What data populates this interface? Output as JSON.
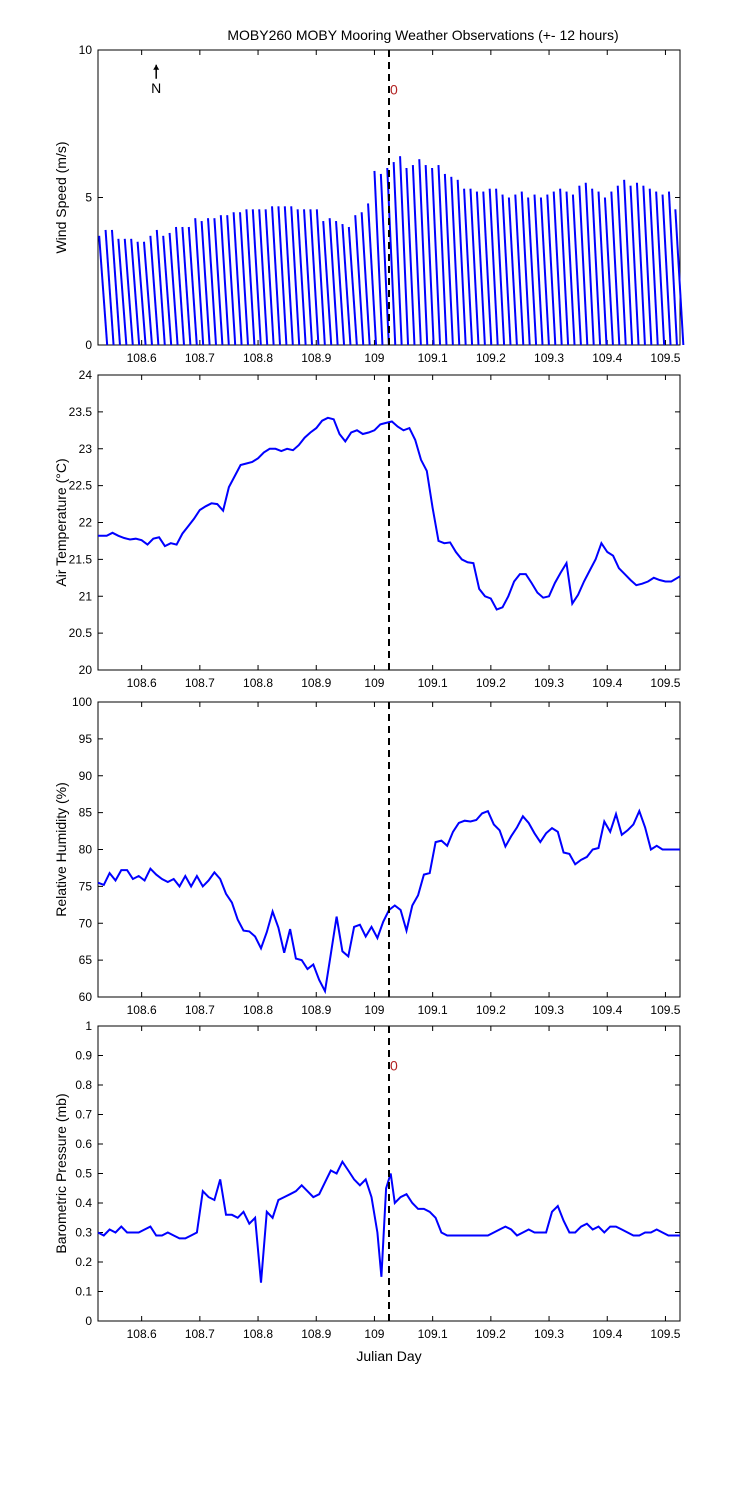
{
  "title": "MOBY260 MOBY Mooring Weather Observations (+- 12 hours)",
  "colors": {
    "series": "#0000ff",
    "axis": "#000000",
    "marker": "#b22222"
  },
  "chart_data": [
    {
      "type": "line",
      "id": "wind",
      "ylabel": "Wind Speed (m/s)",
      "xlabel": "",
      "xlim": [
        108.525,
        109.525
      ],
      "ylim": [
        0,
        10
      ],
      "yticks": [
        0,
        5,
        10
      ],
      "xticks": [
        108.6,
        108.7,
        108.8,
        108.9,
        109,
        109.1,
        109.2,
        109.3,
        109.4,
        109.5
      ],
      "xtick_labels": [
        "108.6",
        "108.7",
        "108.8",
        "108.9",
        "109",
        "109.1",
        "109.2",
        "109.3",
        "109.4",
        "109.5"
      ],
      "vline_x": 109.025,
      "vline_label": "0",
      "compass_label": "N",
      "style": "wind-vectors",
      "x": [
        108.527,
        108.538,
        108.549,
        108.56,
        108.571,
        108.582,
        108.593,
        108.604,
        108.615,
        108.626,
        108.637,
        108.648,
        108.659,
        108.67,
        108.681,
        108.692,
        108.703,
        108.714,
        108.725,
        108.736,
        108.747,
        108.758,
        108.769,
        108.78,
        108.791,
        108.802,
        108.813,
        108.824,
        108.835,
        108.846,
        108.857,
        108.868,
        108.879,
        108.89,
        108.901,
        108.912,
        108.923,
        108.934,
        108.945,
        108.956,
        108.967,
        108.978,
        108.989,
        109.0,
        109.011,
        109.022,
        109.033,
        109.044,
        109.055,
        109.066,
        109.077,
        109.088,
        109.099,
        109.11,
        109.121,
        109.132,
        109.143,
        109.154,
        109.165,
        109.176,
        109.187,
        109.198,
        109.209,
        109.22,
        109.231,
        109.242,
        109.253,
        109.264,
        109.275,
        109.286,
        109.297,
        109.308,
        109.319,
        109.33,
        109.341,
        109.352,
        109.363,
        109.374,
        109.385,
        109.396,
        109.407,
        109.418,
        109.429,
        109.44,
        109.451,
        109.462,
        109.473,
        109.484,
        109.495,
        109.506,
        109.517
      ],
      "values": [
        3.7,
        3.9,
        3.9,
        3.6,
        3.6,
        3.6,
        3.5,
        3.5,
        3.7,
        3.9,
        3.7,
        3.8,
        4.0,
        4.0,
        4.0,
        4.3,
        4.2,
        4.3,
        4.3,
        4.4,
        4.4,
        4.5,
        4.5,
        4.6,
        4.6,
        4.6,
        4.6,
        4.7,
        4.7,
        4.7,
        4.7,
        4.6,
        4.6,
        4.6,
        4.6,
        4.2,
        4.3,
        4.2,
        4.1,
        4.0,
        4.4,
        4.5,
        4.8,
        5.9,
        5.8,
        6.0,
        6.2,
        6.4,
        6.0,
        6.1,
        6.3,
        6.1,
        6.0,
        6.1,
        5.8,
        5.7,
        5.6,
        5.3,
        5.3,
        5.2,
        5.2,
        5.3,
        5.3,
        5.1,
        5.0,
        5.1,
        5.2,
        5.0,
        5.1,
        5.0,
        5.1,
        5.2,
        5.3,
        5.2,
        5.1,
        5.4,
        5.5,
        5.3,
        5.2,
        5.0,
        5.2,
        5.4,
        5.6,
        5.4,
        5.5,
        5.4,
        5.3,
        5.2,
        5.1,
        5.2,
        4.6
      ],
      "values_note_free": true
    },
    {
      "type": "line",
      "id": "airtemp",
      "ylabel": "Air Temperature (°C)",
      "xlabel": "",
      "xlim": [
        108.525,
        109.525
      ],
      "ylim": [
        20,
        24
      ],
      "yticks": [
        20,
        20.5,
        21,
        21.5,
        22,
        22.5,
        23,
        23.5,
        24
      ],
      "ytick_labels": [
        "20",
        "20.5",
        "21",
        "21.5",
        "22",
        "22.5",
        "23",
        "23.5",
        "24"
      ],
      "xticks": [
        108.6,
        108.7,
        108.8,
        108.9,
        109,
        109.1,
        109.2,
        109.3,
        109.4,
        109.5
      ],
      "xtick_labels": [
        "108.6",
        "108.7",
        "108.8",
        "108.9",
        "109",
        "109.1",
        "109.2",
        "109.3",
        "109.4",
        "109.5"
      ],
      "vline_x": 109.025,
      "x": [
        108.525,
        108.54,
        108.55,
        108.56,
        108.57,
        108.58,
        108.59,
        108.6,
        108.61,
        108.62,
        108.63,
        108.64,
        108.65,
        108.66,
        108.67,
        108.68,
        108.69,
        108.7,
        108.71,
        108.72,
        108.73,
        108.74,
        108.75,
        108.76,
        108.77,
        108.78,
        108.79,
        108.8,
        108.81,
        108.82,
        108.83,
        108.84,
        108.85,
        108.86,
        108.87,
        108.88,
        108.89,
        108.9,
        108.91,
        108.92,
        108.93,
        108.94,
        108.95,
        108.96,
        108.97,
        108.98,
        108.99,
        109.0,
        109.01,
        109.02,
        109.03,
        109.04,
        109.05,
        109.06,
        109.07,
        109.08,
        109.09,
        109.1,
        109.11,
        109.12,
        109.13,
        109.14,
        109.15,
        109.16,
        109.17,
        109.18,
        109.19,
        109.2,
        109.21,
        109.22,
        109.23,
        109.24,
        109.25,
        109.26,
        109.27,
        109.28,
        109.29,
        109.3,
        109.31,
        109.32,
        109.33,
        109.34,
        109.35,
        109.36,
        109.37,
        109.38,
        109.39,
        109.4,
        109.41,
        109.42,
        109.43,
        109.44,
        109.45,
        109.46,
        109.47,
        109.48,
        109.49,
        109.5,
        109.51,
        109.525
      ],
      "values": [
        21.82,
        21.82,
        21.86,
        21.82,
        21.79,
        21.77,
        21.78,
        21.76,
        21.7,
        21.78,
        21.8,
        21.68,
        21.72,
        21.7,
        21.85,
        21.95,
        22.05,
        22.17,
        22.22,
        22.26,
        22.25,
        22.16,
        22.48,
        22.63,
        22.78,
        22.8,
        22.82,
        22.87,
        22.95,
        23.0,
        23.0,
        22.97,
        23.0,
        22.98,
        23.05,
        23.15,
        23.22,
        23.28,
        23.38,
        23.42,
        23.4,
        23.2,
        23.1,
        23.22,
        23.25,
        23.2,
        23.22,
        23.25,
        23.33,
        23.35,
        23.37,
        23.3,
        23.25,
        23.28,
        23.12,
        22.85,
        22.7,
        22.2,
        21.75,
        21.72,
        21.73,
        21.6,
        21.5,
        21.46,
        21.45,
        21.1,
        21.0,
        20.97,
        20.82,
        20.85,
        21.0,
        21.2,
        21.3,
        21.3,
        21.18,
        21.05,
        20.98,
        21.0,
        21.18,
        21.32,
        21.45,
        20.9,
        21.02,
        21.2,
        21.35,
        21.5,
        21.72,
        21.6,
        21.55,
        21.38,
        21.3,
        21.22,
        21.15,
        21.17,
        21.2,
        21.25,
        21.22,
        21.2,
        21.2,
        21.27
      ]
    },
    {
      "type": "line",
      "id": "humidity",
      "ylabel": "Relative Humidity (%)",
      "xlabel": "",
      "xlim": [
        108.525,
        109.525
      ],
      "ylim": [
        60,
        100
      ],
      "yticks": [
        60,
        65,
        70,
        75,
        80,
        85,
        90,
        95,
        100
      ],
      "ytick_labels": [
        "60",
        "65",
        "70",
        "75",
        "80",
        "85",
        "90",
        "95",
        "100"
      ],
      "xticks": [
        108.6,
        108.7,
        108.8,
        108.9,
        109,
        109.1,
        109.2,
        109.3,
        109.4,
        109.5
      ],
      "xtick_labels": [
        "108.6",
        "108.7",
        "108.8",
        "108.9",
        "109",
        "109.1",
        "109.2",
        "109.3",
        "109.4",
        "109.5"
      ],
      "vline_x": 109.025,
      "x": [
        108.525,
        108.535,
        108.545,
        108.555,
        108.565,
        108.575,
        108.585,
        108.595,
        108.605,
        108.615,
        108.625,
        108.635,
        108.645,
        108.655,
        108.665,
        108.675,
        108.685,
        108.695,
        108.705,
        108.715,
        108.725,
        108.735,
        108.745,
        108.755,
        108.765,
        108.775,
        108.785,
        108.795,
        108.805,
        108.815,
        108.825,
        108.835,
        108.845,
        108.855,
        108.865,
        108.875,
        108.885,
        108.895,
        108.905,
        108.915,
        108.925,
        108.935,
        108.945,
        108.955,
        108.965,
        108.975,
        108.985,
        108.995,
        109.005,
        109.015,
        109.025,
        109.035,
        109.045,
        109.055,
        109.065,
        109.075,
        109.085,
        109.095,
        109.105,
        109.115,
        109.125,
        109.135,
        109.145,
        109.155,
        109.165,
        109.175,
        109.185,
        109.195,
        109.205,
        109.215,
        109.225,
        109.235,
        109.245,
        109.255,
        109.265,
        109.275,
        109.285,
        109.295,
        109.305,
        109.315,
        109.325,
        109.335,
        109.345,
        109.355,
        109.365,
        109.375,
        109.385,
        109.395,
        109.405,
        109.415,
        109.425,
        109.435,
        109.445,
        109.455,
        109.465,
        109.475,
        109.485,
        109.495,
        109.505,
        109.515,
        109.525
      ],
      "values": [
        75.5,
        75.2,
        76.8,
        75.8,
        77.2,
        77.2,
        76.0,
        76.4,
        75.8,
        77.4,
        76.6,
        76.0,
        75.6,
        76.0,
        75.0,
        76.4,
        75.0,
        76.4,
        75.0,
        75.8,
        76.9,
        76.0,
        74.0,
        72.8,
        70.5,
        69.0,
        68.9,
        68.2,
        66.6,
        68.8,
        71.6,
        69.4,
        66.0,
        69.2,
        65.2,
        65.0,
        63.8,
        64.4,
        62.3,
        60.8,
        65.8,
        70.9,
        66.2,
        65.5,
        69.5,
        69.8,
        68.2,
        69.5,
        68.0,
        70.2,
        71.8,
        72.4,
        71.8,
        69.0,
        72.4,
        73.8,
        76.6,
        76.8,
        81.0,
        81.2,
        80.5,
        82.4,
        83.6,
        83.9,
        83.8,
        84.0,
        84.9,
        85.2,
        83.4,
        82.6,
        80.4,
        81.8,
        83.0,
        84.5,
        83.6,
        82.2,
        81.0,
        82.2,
        82.9,
        82.4,
        79.6,
        79.4,
        78.0,
        78.6,
        79.0,
        80.0,
        80.2,
        83.8,
        82.4,
        84.8,
        82.0,
        82.6,
        83.4,
        85.2,
        83.0,
        80.0,
        80.5,
        80.0,
        80.0,
        80.0,
        80.0
      ]
    },
    {
      "type": "line",
      "id": "pressure",
      "ylabel": "Barometric Pressure (mb)",
      "xlabel": "Julian Day",
      "xlim": [
        108.525,
        109.525
      ],
      "ylim": [
        0,
        1
      ],
      "yticks": [
        0,
        0.1,
        0.2,
        0.3,
        0.4,
        0.5,
        0.6,
        0.7,
        0.8,
        0.9,
        1
      ],
      "ytick_labels": [
        "0",
        "0.1",
        "0.2",
        "0.3",
        "0.4",
        "0.5",
        "0.6",
        "0.7",
        "0.8",
        "0.9",
        "1"
      ],
      "xticks": [
        108.6,
        108.7,
        108.8,
        108.9,
        109,
        109.1,
        109.2,
        109.3,
        109.4,
        109.5
      ],
      "xtick_labels": [
        "108.6",
        "108.7",
        "108.8",
        "108.9",
        "109",
        "109.1",
        "109.2",
        "109.3",
        "109.4",
        "109.5"
      ],
      "vline_x": 109.025,
      "vline_label": "0",
      "x": [
        108.525,
        108.535,
        108.545,
        108.555,
        108.565,
        108.575,
        108.585,
        108.595,
        108.605,
        108.615,
        108.625,
        108.635,
        108.645,
        108.655,
        108.665,
        108.675,
        108.685,
        108.695,
        108.705,
        108.715,
        108.725,
        108.735,
        108.745,
        108.755,
        108.765,
        108.775,
        108.785,
        108.795,
        108.805,
        108.815,
        108.825,
        108.835,
        108.845,
        108.855,
        108.865,
        108.875,
        108.885,
        108.895,
        108.905,
        108.915,
        108.925,
        108.935,
        108.945,
        108.955,
        108.965,
        108.975,
        108.985,
        108.995,
        109.005,
        109.012,
        109.02,
        109.028,
        109.035,
        109.045,
        109.055,
        109.065,
        109.075,
        109.085,
        109.095,
        109.105,
        109.115,
        109.125,
        109.135,
        109.145,
        109.155,
        109.165,
        109.175,
        109.185,
        109.195,
        109.205,
        109.215,
        109.225,
        109.235,
        109.245,
        109.255,
        109.265,
        109.275,
        109.285,
        109.295,
        109.305,
        109.315,
        109.325,
        109.335,
        109.345,
        109.355,
        109.365,
        109.375,
        109.385,
        109.395,
        109.405,
        109.415,
        109.425,
        109.435,
        109.445,
        109.455,
        109.465,
        109.475,
        109.485,
        109.495,
        109.505,
        109.525
      ],
      "values": [
        0.3,
        0.29,
        0.31,
        0.3,
        0.32,
        0.3,
        0.3,
        0.3,
        0.31,
        0.32,
        0.29,
        0.29,
        0.3,
        0.29,
        0.28,
        0.28,
        0.29,
        0.3,
        0.44,
        0.42,
        0.41,
        0.48,
        0.36,
        0.36,
        0.35,
        0.37,
        0.33,
        0.35,
        0.13,
        0.37,
        0.35,
        0.41,
        0.42,
        0.43,
        0.44,
        0.46,
        0.44,
        0.42,
        0.43,
        0.47,
        0.51,
        0.5,
        0.54,
        0.51,
        0.48,
        0.46,
        0.48,
        0.42,
        0.3,
        0.15,
        0.45,
        0.5,
        0.4,
        0.42,
        0.43,
        0.4,
        0.38,
        0.38,
        0.37,
        0.35,
        0.3,
        0.29,
        0.29,
        0.29,
        0.29,
        0.29,
        0.29,
        0.29,
        0.29,
        0.3,
        0.31,
        0.32,
        0.31,
        0.29,
        0.3,
        0.31,
        0.3,
        0.3,
        0.3,
        0.37,
        0.39,
        0.34,
        0.3,
        0.3,
        0.32,
        0.33,
        0.31,
        0.32,
        0.3,
        0.32,
        0.32,
        0.31,
        0.3,
        0.29,
        0.29,
        0.3,
        0.3,
        0.31,
        0.3,
        0.29,
        0.29
      ]
    }
  ]
}
